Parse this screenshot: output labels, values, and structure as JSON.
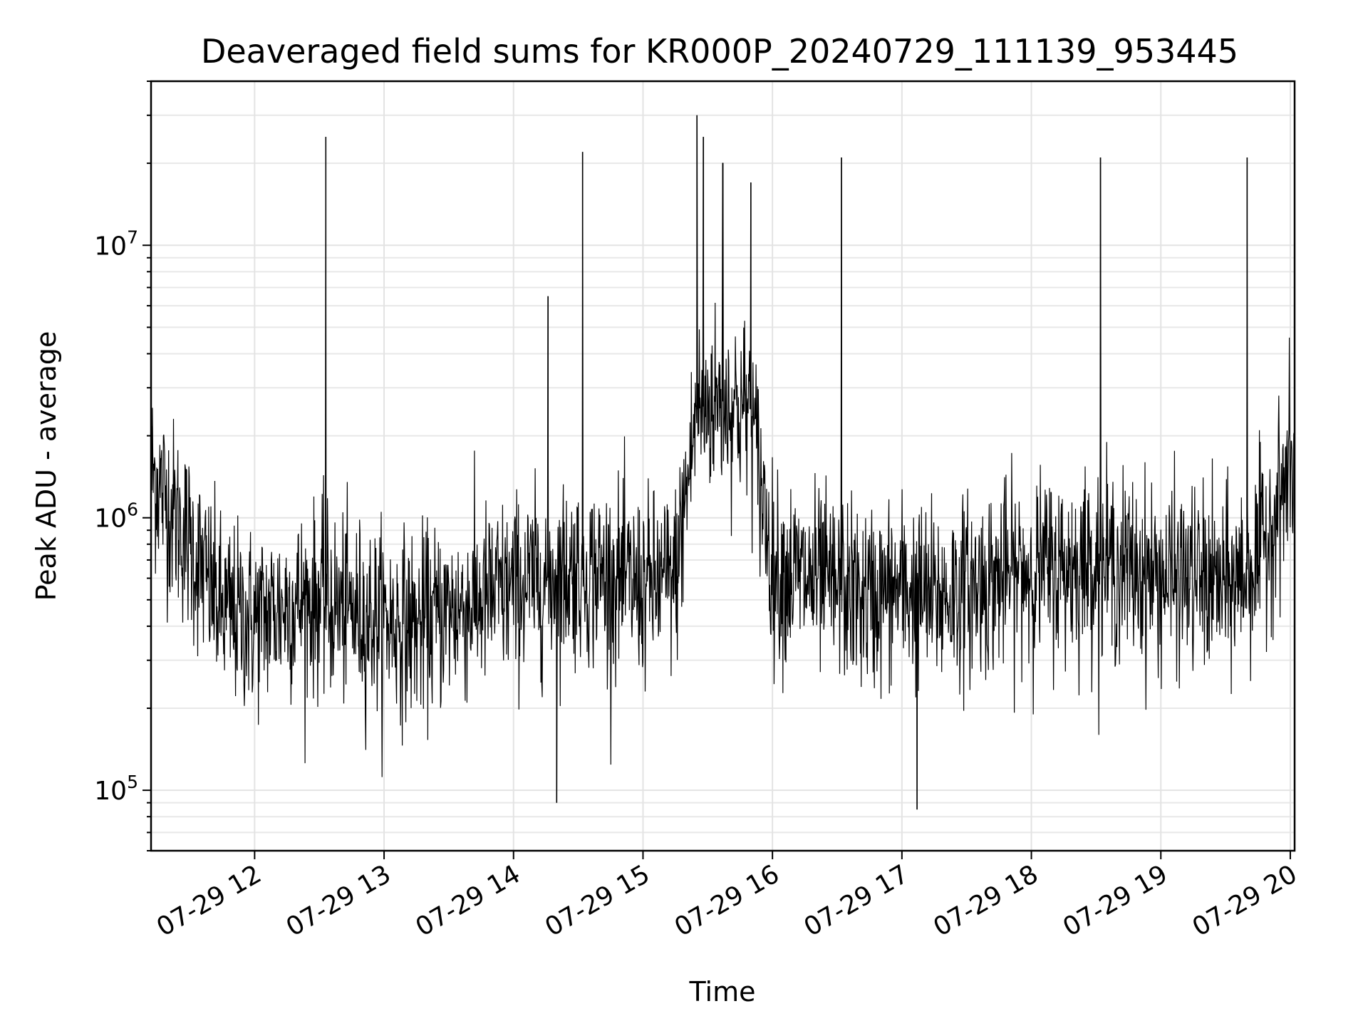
{
  "chart_data": {
    "type": "line",
    "title": "Deaveraged field sums for KR000P_20240729_111139_953445",
    "xlabel": "Time",
    "ylabel": "Peak ADU - average",
    "yscale": "log",
    "ylim": [
      60000,
      40000000
    ],
    "xlim": [
      "07-29 11:12",
      "07-29 20:02"
    ],
    "x_ticks": [
      "07-29 12",
      "07-29 13",
      "07-29 14",
      "07-29 15",
      "07-29 16",
      "07-29 17",
      "07-29 18",
      "07-29 19",
      "07-29 20"
    ],
    "y_ticks": [
      {
        "value": 100000,
        "base": "10",
        "exp": "5"
      },
      {
        "value": 1000000,
        "base": "10",
        "exp": "6"
      },
      {
        "value": 10000000,
        "base": "10",
        "exp": "7"
      }
    ],
    "grid": true,
    "line_color": "#000000",
    "series": [
      {
        "x": [
          "07-29 11:12",
          "07-29 11:30",
          "07-29 11:45",
          "07-29 12:00",
          "07-29 12:15",
          "07-29 12:30",
          "07-29 12:45",
          "07-29 13:00",
          "07-29 13:15",
          "07-29 13:30",
          "07-29 13:45",
          "07-29 14:00",
          "07-29 14:15",
          "07-29 14:30",
          "07-29 14:45",
          "07-29 15:00",
          "07-29 15:15",
          "07-29 15:25",
          "07-29 15:35",
          "07-29 15:50",
          "07-29 16:00",
          "07-29 16:15",
          "07-29 16:30",
          "07-29 16:45",
          "07-29 17:00",
          "07-29 17:15",
          "07-29 17:30",
          "07-29 17:45",
          "07-29 18:00",
          "07-29 18:15",
          "07-29 18:30",
          "07-29 18:45",
          "07-29 19:00",
          "07-29 19:15",
          "07-29 19:30",
          "07-29 19:45",
          "07-29 20:00"
        ],
        "values": [
          1500000,
          800000,
          450000,
          420000,
          480000,
          500000,
          450000,
          420000,
          400000,
          450000,
          500000,
          550000,
          600000,
          650000,
          600000,
          550000,
          600000,
          2500000,
          2700000,
          2500000,
          650000,
          600000,
          550000,
          500000,
          550000,
          500000,
          550000,
          600000,
          650000,
          650000,
          700000,
          650000,
          600000,
          600000,
          550000,
          700000,
          1500000
        ]
      }
    ],
    "spikes": [
      {
        "x": "07-29 12:33",
        "y": 25000000
      },
      {
        "x": "07-29 14:32",
        "y": 22000000
      },
      {
        "x": "07-29 14:16",
        "y": 6500000
      },
      {
        "x": "07-29 15:25",
        "y": 30000000
      },
      {
        "x": "07-29 15:28",
        "y": 25000000
      },
      {
        "x": "07-29 15:37",
        "y": 20000000
      },
      {
        "x": "07-29 15:50",
        "y": 17000000
      },
      {
        "x": "07-29 16:32",
        "y": 21000000
      },
      {
        "x": "07-29 18:32",
        "y": 21000000
      },
      {
        "x": "07-29 19:40",
        "y": 21000000
      },
      {
        "x": "07-29 14:20",
        "y": 90000
      },
      {
        "x": "07-29 17:07",
        "y": 85000
      }
    ]
  }
}
